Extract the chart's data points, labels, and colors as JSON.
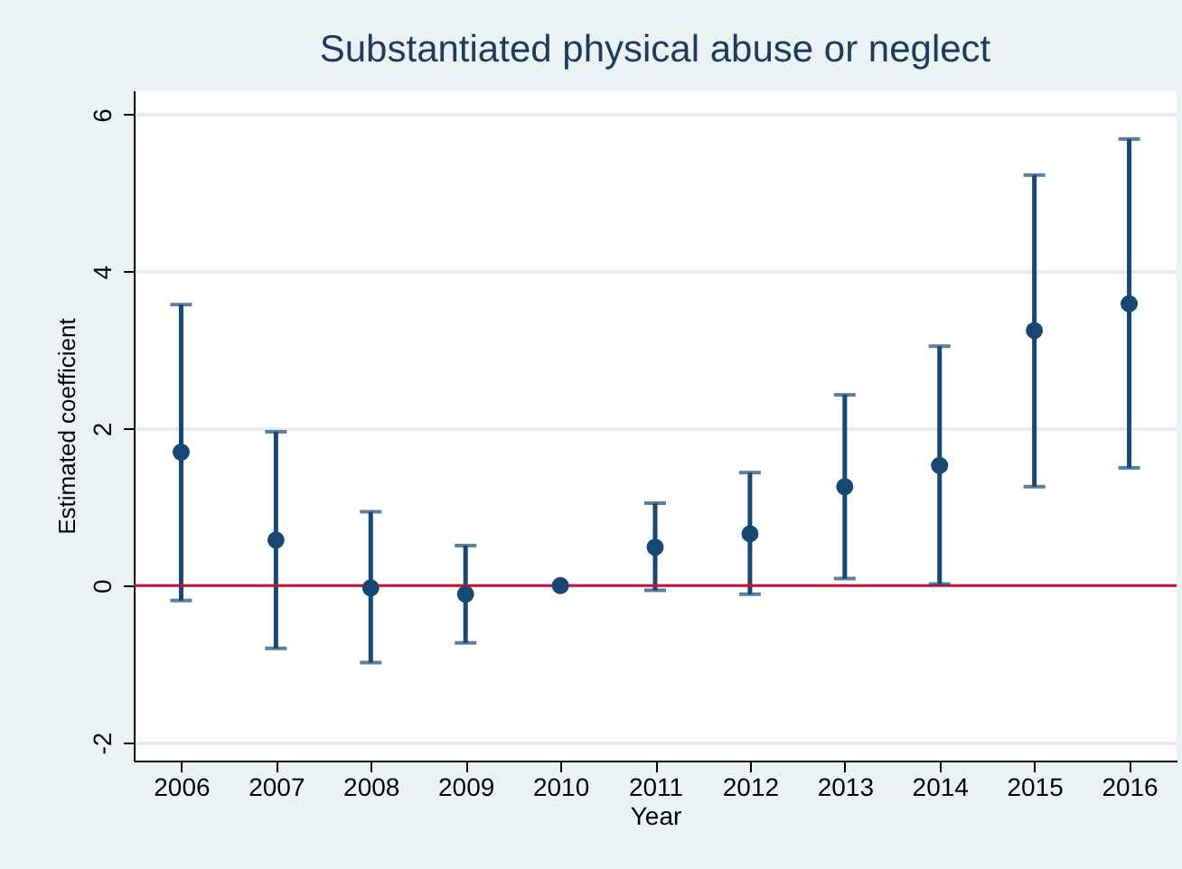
{
  "chart_data": {
    "type": "scatter",
    "title": "Substantiated physical abuse or neglect",
    "xlabel": "Year",
    "ylabel": "Estimated coefficient",
    "categories": [
      "2006",
      "2007",
      "2008",
      "2009",
      "2010",
      "2011",
      "2012",
      "2013",
      "2014",
      "2015",
      "2016"
    ],
    "series": [
      {
        "color": "#1a4772",
        "values": [
          1.7,
          0.58,
          -0.03,
          -0.11,
          0,
          0.49,
          0.66,
          1.26,
          1.53,
          3.25,
          3.59
        ],
        "errors": [
          [
            -0.19,
            3.58
          ],
          [
            -0.8,
            1.96
          ],
          [
            -0.98,
            0.94
          ],
          [
            -0.73,
            0.51
          ],
          null,
          [
            -0.06,
            1.05
          ],
          [
            -0.11,
            1.44
          ],
          [
            0.09,
            2.43
          ],
          [
            0.02,
            3.05
          ],
          [
            1.26,
            5.23
          ],
          [
            1.5,
            5.69
          ]
        ]
      }
    ],
    "ylim": [
      -2.23,
      6.31
    ],
    "yticks": [
      -2,
      0,
      2,
      4,
      6
    ],
    "grid": "y",
    "marker": "circle",
    "ref_lines": [
      {
        "axis": "y",
        "value": 0,
        "color": "#c8102e"
      }
    ]
  }
}
